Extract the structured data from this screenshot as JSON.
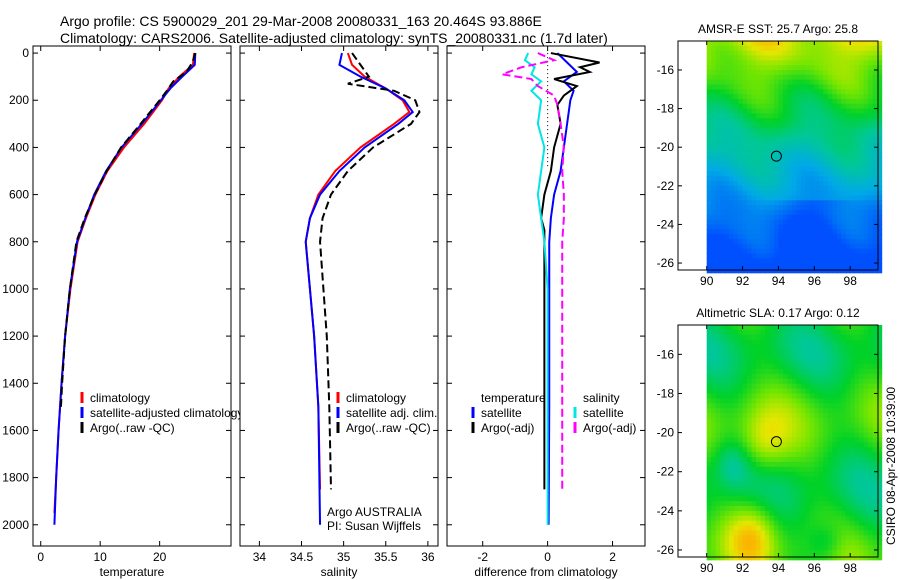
{
  "title_line1": "Argo profile: CS 5900029_201 29-Mar-2008 20080331_163 20.464S 93.886E",
  "title_line2": "Climatology: CARS2006. Satellite-adjusted climatology: synTS_20080331.nc (1.7d later)",
  "side_label": "CSIRO 08-Apr-2008 10:39:00",
  "colors": {
    "red": "#ff0000",
    "blue": "#0000ff",
    "black": "#000000",
    "cyan": "#00e5e5",
    "magenta": "#ff00ff"
  },
  "chart_data": [
    {
      "type": "line",
      "xlabel": "temperature",
      "ylabel": "",
      "xlim": [
        -1.3,
        32
      ],
      "ylim": [
        2090,
        -30
      ],
      "xticks": [
        0,
        10,
        20
      ],
      "yticks": [
        0,
        200,
        400,
        600,
        800,
        1000,
        1200,
        1400,
        1600,
        1800,
        2000
      ],
      "legend": [
        "climatology",
        "satellite-adjusted climatology",
        "Argo(..raw -QC)"
      ],
      "legend_position": "bottom-right",
      "series": [
        {
          "name": "climatology",
          "color": "red",
          "dash": "",
          "depth": [
            0,
            50,
            100,
            150,
            200,
            300,
            400,
            500,
            600,
            700,
            800,
            1000,
            1200,
            1400,
            1600,
            1800,
            1950
          ],
          "values": [
            25.8,
            25.6,
            23.3,
            21.5,
            20.4,
            17.4,
            14,
            11.2,
            9.2,
            7.6,
            6.2,
            5.0,
            4.1,
            3.5,
            3.0,
            2.6,
            2.3
          ]
        },
        {
          "name": "satellite-adjusted climatology",
          "color": "blue",
          "dash": "",
          "depth": [
            0,
            50,
            100,
            150,
            200,
            300,
            400,
            500,
            600,
            700,
            800,
            1000,
            1200,
            1400,
            1600,
            1800,
            2000
          ],
          "values": [
            26,
            25.9,
            23.8,
            21.8,
            20.2,
            17,
            13.6,
            11,
            9,
            7.5,
            6.1,
            4.9,
            4.1,
            3.5,
            3.0,
            2.6,
            2.3
          ]
        },
        {
          "name": "Argo(..raw -QC)",
          "color": "black",
          "dash": "8,4",
          "depth": [
            0,
            40,
            80,
            120,
            160,
            200,
            300,
            400,
            500,
            600,
            700,
            800,
            1000,
            1200,
            1400,
            1500
          ],
          "values": [
            26,
            25.5,
            24.5,
            22.3,
            21.2,
            20.0,
            16.8,
            13.5,
            11.1,
            9.1,
            7.4,
            6.0,
            4.9,
            4.1,
            3.6,
            3.4
          ]
        }
      ]
    },
    {
      "type": "line",
      "xlabel": "salinity",
      "xlim": [
        33.77,
        36.12
      ],
      "ylim": [
        2090,
        -30
      ],
      "xticks": [
        34,
        34.5,
        35,
        35.5,
        36
      ],
      "legend": [
        "climatology",
        "satellite adj. clim.",
        "Argo(..raw -QC)"
      ],
      "legend_position": "bottom-right",
      "annotation": [
        "Argo AUSTRALIA",
        "PI: Susan Wijffels"
      ],
      "series": [
        {
          "name": "climatology",
          "color": "red",
          "dash": "",
          "depth": [
            0,
            50,
            100,
            150,
            200,
            250,
            300,
            400,
            500,
            600,
            700,
            800,
            1000,
            1200,
            1500,
            1850
          ],
          "values": [
            35.05,
            35.1,
            35.25,
            35.5,
            35.7,
            35.78,
            35.6,
            35.2,
            34.9,
            34.7,
            34.6,
            34.55,
            34.6,
            34.65,
            34.7,
            34.72
          ]
        },
        {
          "name": "satellite adj. clim.",
          "color": "blue",
          "dash": "",
          "depth": [
            0,
            50,
            100,
            150,
            200,
            250,
            300,
            400,
            500,
            600,
            700,
            800,
            1000,
            1200,
            1500,
            2000
          ],
          "values": [
            34.98,
            34.95,
            35.2,
            35.5,
            35.72,
            35.82,
            35.65,
            35.25,
            34.95,
            34.72,
            34.6,
            34.55,
            34.6,
            34.65,
            34.7,
            34.72
          ]
        },
        {
          "name": "Argo(..raw -QC)",
          "color": "black",
          "dash": "8,4",
          "depth": [
            0,
            50,
            100,
            130,
            160,
            200,
            250,
            300,
            400,
            500,
            600,
            700,
            800,
            1000,
            1200,
            1500,
            1850
          ],
          "values": [
            35.1,
            35.2,
            35.3,
            35.05,
            35.6,
            35.85,
            35.9,
            35.8,
            35.35,
            35.05,
            34.85,
            34.75,
            34.72,
            34.76,
            34.8,
            34.83,
            34.85
          ]
        }
      ]
    },
    {
      "type": "line",
      "xlabel": "difference from climatology",
      "xlim": [
        -3.1,
        3.0
      ],
      "ylim": [
        2090,
        -30
      ],
      "xticks": [
        -2,
        0,
        2
      ],
      "legend": [
        "temperature",
        "satellite",
        "Argo(-adj)",
        "salinity",
        "satellite",
        "Argo(-adj)"
      ],
      "legend_position": "bottom",
      "series": [
        {
          "name": "temperature satellite",
          "color": "blue",
          "dash": "",
          "depth": [
            0,
            40,
            80,
            120,
            160,
            200,
            300,
            400,
            500,
            600,
            700,
            800,
            1000,
            1500,
            2000
          ],
          "values": [
            0.3,
            0.6,
            0.9,
            0.5,
            0.8,
            0.7,
            0.6,
            0.5,
            0.4,
            0.2,
            0.1,
            0.05,
            0.05,
            0.05,
            0.03
          ]
        },
        {
          "name": "temperature Argo(-adj)",
          "color": "black",
          "dash": "",
          "depth": [
            0,
            40,
            60,
            80,
            110,
            140,
            180,
            220,
            300,
            400,
            500,
            600,
            700,
            750,
            800,
            1000,
            1500,
            1850
          ],
          "values": [
            0.1,
            1.6,
            1.0,
            1.3,
            0.2,
            0.9,
            0.5,
            0.3,
            0.4,
            0.2,
            0.1,
            -0.1,
            -0.2,
            -0.1,
            -0.1,
            -0.1,
            -0.1,
            -0.1
          ]
        },
        {
          "name": "salinity satellite",
          "color": "cyan",
          "dash": "",
          "depth": [
            0,
            30,
            60,
            90,
            120,
            160,
            200,
            300,
            400,
            500,
            600,
            700,
            800,
            1000,
            1500,
            2000
          ],
          "values": [
            -0.6,
            -0.7,
            -0.4,
            -0.5,
            -0.2,
            -0.5,
            -0.2,
            -0.3,
            -0.1,
            -0.2,
            -0.3,
            -0.2,
            -0.1,
            0,
            0,
            0
          ]
        },
        {
          "name": "salinity Argo(-adj)",
          "color": "magenta",
          "dash": "8,4",
          "depth": [
            0,
            30,
            60,
            90,
            110,
            140,
            180,
            220,
            300,
            400,
            500,
            600,
            700,
            800,
            1000,
            1500,
            1850
          ],
          "values": [
            -0.3,
            0.2,
            -0.8,
            -1.4,
            -0.5,
            -0.3,
            0.2,
            0.3,
            0.4,
            0.5,
            0.45,
            0.5,
            0.5,
            0.45,
            0.45,
            0.45,
            0.45
          ]
        }
      ]
    },
    {
      "type": "heatmap",
      "title": "AMSR-E SST: 25.7 Argo: 25.8",
      "field": "sst",
      "xticks": [
        90,
        92,
        94,
        96,
        98
      ],
      "yticks": [
        -16,
        -18,
        -20,
        -22,
        -24,
        -26
      ],
      "xlim": [
        88.4,
        99.55
      ],
      "ylim": [
        -26.36,
        -14.5
      ],
      "data_lon_range": [
        90,
        99.55
      ],
      "marker": {
        "lon": 93.886,
        "lat": -20.464
      }
    },
    {
      "type": "heatmap",
      "title": "Altimetric SLA: 0.17 Argo: 0.12",
      "field": "sla",
      "xticks": [
        90,
        92,
        94,
        96,
        98
      ],
      "yticks": [
        -16,
        -18,
        -20,
        -22,
        -24,
        -26
      ],
      "xlim": [
        88.4,
        99.55
      ],
      "ylim": [
        -26.36,
        -14.5
      ],
      "data_lon_range": [
        90,
        99.55
      ],
      "marker": {
        "lon": 93.886,
        "lat": -20.464
      }
    }
  ]
}
